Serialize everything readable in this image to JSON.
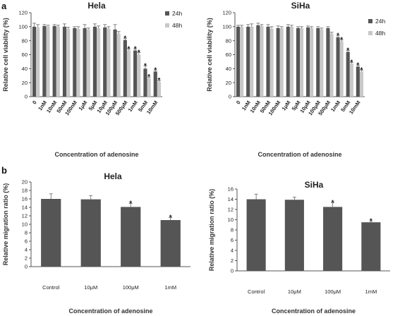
{
  "panels": {
    "a": "a",
    "b": "b"
  },
  "colors": {
    "dark": "#555555",
    "light": "#c8c8c8",
    "axis": "#555555"
  },
  "chart_data": [
    {
      "id": "a-hela",
      "type": "bar",
      "title": "Hela",
      "xlabel": "Concentration of adenosine",
      "ylabel": "Relative cell viability (%)",
      "ylim": [
        0,
        120
      ],
      "yticks": [
        0,
        20,
        40,
        60,
        80,
        100,
        120
      ],
      "categories": [
        "0",
        "1nM",
        "10nM",
        "50nM",
        "100nM",
        "1μM",
        "5μM",
        "10μM",
        "100μM",
        "500μM",
        "1mM",
        "5mM",
        "10mM"
      ],
      "legend": "right",
      "series": [
        {
          "name": "24h",
          "color": "#555555",
          "values": [
            100,
            101,
            101,
            100,
            98,
            98,
            100,
            99,
            96,
            81,
            66,
            40,
            36
          ],
          "errors": [
            5,
            2,
            2,
            4,
            2,
            5,
            4,
            4,
            7,
            2,
            2,
            4,
            2
          ],
          "sig": [
            false,
            false,
            false,
            false,
            false,
            false,
            false,
            false,
            false,
            true,
            true,
            true,
            true
          ]
        },
        {
          "name": "48h",
          "color": "#c8c8c8",
          "values": [
            99,
            100,
            100,
            97,
            97,
            96,
            98,
            97,
            90,
            66,
            60,
            26,
            21
          ],
          "errors": [
            4,
            2,
            2,
            2,
            3,
            2,
            3,
            3,
            3,
            2,
            3,
            2,
            2
          ],
          "sig": [
            false,
            false,
            false,
            false,
            false,
            false,
            false,
            false,
            false,
            true,
            true,
            true,
            true
          ]
        }
      ]
    },
    {
      "id": "a-siha",
      "type": "bar",
      "title": "SiHa",
      "xlabel": "Concentration of adenosine",
      "ylabel": "Relative cell viability (%)",
      "ylim": [
        0,
        120
      ],
      "yticks": [
        0,
        20,
        40,
        60,
        80,
        100,
        120
      ],
      "categories": [
        "0",
        "1nM",
        "10nM",
        "50nM",
        "100nM",
        "1μM",
        "5μM",
        "10μM",
        "100μM",
        "500μM",
        "1mM",
        "5mM",
        "10mM"
      ],
      "legend": "right",
      "series": [
        {
          "name": "24h",
          "color": "#555555",
          "values": [
            100,
            100,
            102,
            100,
            98,
            100,
            98,
            99,
            98,
            98,
            85,
            64,
            43
          ],
          "errors": [
            2,
            3,
            3,
            3,
            3,
            3,
            2,
            2,
            2,
            2,
            2,
            2,
            2
          ],
          "sig": [
            false,
            false,
            false,
            false,
            false,
            false,
            false,
            false,
            false,
            false,
            true,
            true,
            true
          ]
        },
        {
          "name": "48h",
          "color": "#c8c8c8",
          "values": [
            100,
            100,
            101,
            97,
            98,
            100,
            98,
            98,
            96,
            90,
            79,
            47,
            36
          ],
          "errors": [
            2,
            4,
            2,
            3,
            2,
            2,
            2,
            2,
            2,
            2,
            2,
            2,
            2
          ],
          "sig": [
            false,
            false,
            false,
            false,
            false,
            false,
            false,
            false,
            false,
            false,
            true,
            true,
            true
          ]
        }
      ]
    },
    {
      "id": "b-hela",
      "type": "bar",
      "title": "Hela",
      "xlabel": "Concentration of adenosine",
      "ylabel": "Relative migration ratio (%)",
      "ylim": [
        0,
        20
      ],
      "yticks": [
        0,
        2,
        4,
        6,
        8,
        10,
        12,
        14,
        16,
        18,
        20
      ],
      "categories": [
        "Control",
        "10μM",
        "100μM",
        "1mM"
      ],
      "series": [
        {
          "name": "",
          "color": "#555555",
          "values": [
            16.0,
            15.9,
            14.1,
            11.0
          ],
          "errors": [
            1.2,
            0.9,
            0.8,
            0.6
          ],
          "sig": [
            false,
            false,
            true,
            true
          ]
        }
      ]
    },
    {
      "id": "b-siha",
      "type": "bar",
      "title": "SiHa",
      "xlabel": "Concentration of adenosine",
      "ylabel": "Relative migration ratio (%)",
      "ylim": [
        0,
        16
      ],
      "yticks": [
        0,
        2,
        4,
        6,
        8,
        10,
        12,
        14,
        16
      ],
      "categories": [
        "Control",
        "10μM",
        "100μM",
        "1mM"
      ],
      "series": [
        {
          "name": "",
          "color": "#555555",
          "values": [
            14.0,
            13.9,
            12.5,
            9.5
          ],
          "errors": [
            1.0,
            0.5,
            0.8,
            0.2
          ],
          "sig": [
            false,
            false,
            true,
            true
          ]
        }
      ]
    }
  ]
}
